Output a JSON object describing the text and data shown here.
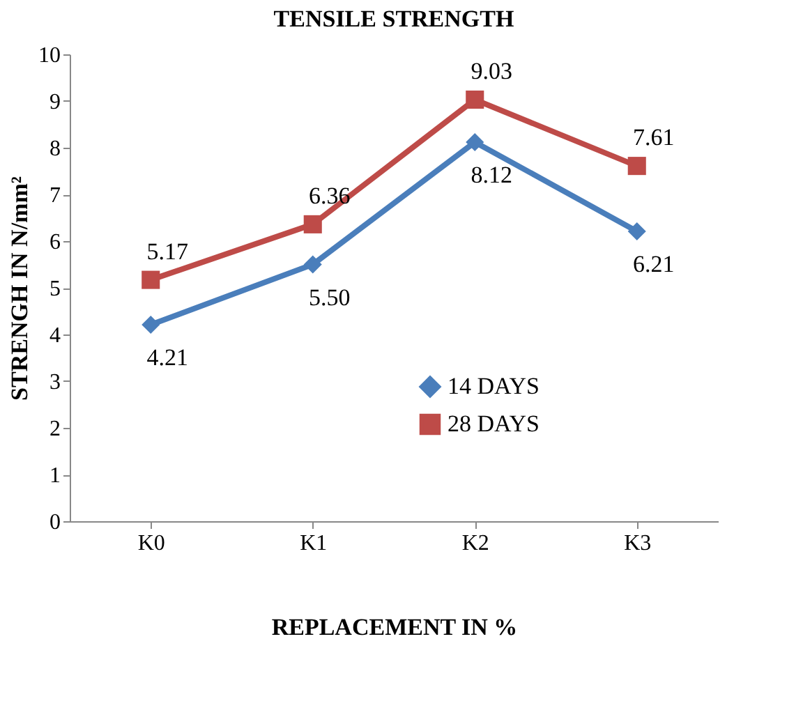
{
  "chart_data": {
    "type": "line",
    "title": "TENSILE STRENGTH",
    "xlabel": "REPLACEMENT  IN %",
    "ylabel": "STRENGH  IN N/mm²",
    "categories": [
      "K0",
      "K1",
      "K2",
      "K3"
    ],
    "series": [
      {
        "name": "14 DAYS",
        "color": "#4a7ebb",
        "marker": "diamond",
        "values": [
          4.21,
          5.5,
          8.12,
          6.21
        ],
        "value_labels": [
          "4.21",
          "5.50",
          "8.12",
          "6.21"
        ]
      },
      {
        "name": "28 DAYS",
        "color": "#be4b48",
        "marker": "square",
        "values": [
          5.17,
          6.36,
          9.03,
          7.61
        ],
        "value_labels": [
          "5.17",
          "6.36",
          "9.03",
          "7.61"
        ]
      }
    ],
    "ylim": [
      0,
      10
    ],
    "yticks": [
      0,
      1,
      2,
      3,
      4,
      5,
      6,
      7,
      8,
      9,
      10
    ],
    "grid": false,
    "legend": "bottom right"
  }
}
